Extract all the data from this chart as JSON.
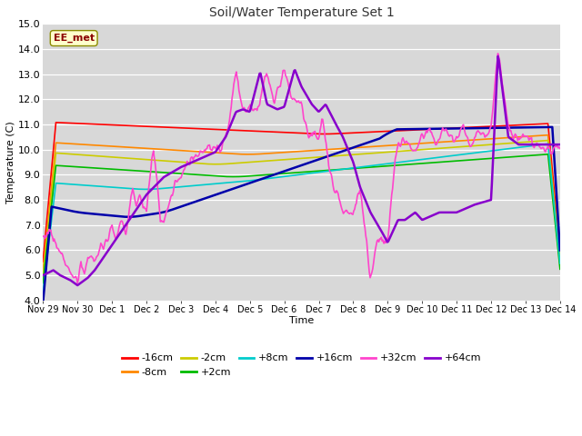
{
  "title": "Soil/Water Temperature Set 1",
  "xlabel": "Time",
  "ylabel": "Temperature (C)",
  "ylim": [
    4.0,
    15.0
  ],
  "yticks": [
    4.0,
    5.0,
    6.0,
    7.0,
    8.0,
    9.0,
    10.0,
    11.0,
    12.0,
    13.0,
    14.0,
    15.0
  ],
  "fig_bg_color": "#ffffff",
  "plot_bg_color": "#d8d8d8",
  "annotation_text": "EE_met",
  "annotation_box_color": "#ffffcc",
  "annotation_border_color": "#8b8b00",
  "series": {
    "-16cm": {
      "color": "#ff0000",
      "lw": 1.2
    },
    "-8cm": {
      "color": "#ff8800",
      "lw": 1.2
    },
    "-2cm": {
      "color": "#cccc00",
      "lw": 1.2
    },
    "+2cm": {
      "color": "#00bb00",
      "lw": 1.2
    },
    "+8cm": {
      "color": "#00cccc",
      "lw": 1.2
    },
    "+16cm": {
      "color": "#0000aa",
      "lw": 1.8
    },
    "+32cm": {
      "color": "#ff44cc",
      "lw": 1.2
    },
    "+64cm": {
      "color": "#8800cc",
      "lw": 1.8
    }
  },
  "x_tick_labels": [
    "Nov 29",
    "Nov 30",
    "Dec 1",
    "Dec 2",
    "Dec 3",
    "Dec 4",
    "Dec 5",
    "Dec 6",
    "Dec 7",
    "Dec 8",
    "Dec 9",
    "Dec 10",
    "Dec 11",
    "Dec 12",
    "Dec 13",
    "Dec 14"
  ]
}
